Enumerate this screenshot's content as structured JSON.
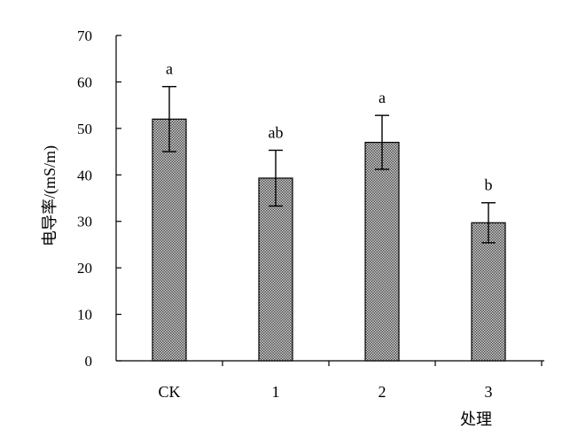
{
  "chart_data": {
    "type": "bar",
    "title": "",
    "ylabel": "电导率/(mS/m)",
    "xlabel": "处理",
    "ylim": [
      0,
      70
    ],
    "yticks": [
      0,
      10,
      20,
      30,
      40,
      50,
      60,
      70
    ],
    "categories": [
      "CK",
      "1",
      "2",
      "3"
    ],
    "values": [
      52,
      39.3,
      47,
      29.7
    ],
    "errors": [
      7,
      6,
      5.8,
      4.3
    ],
    "significance": [
      "a",
      "ab",
      "a",
      "b"
    ],
    "grid": false,
    "legend": "none",
    "bar_pattern_color": "#6e6e6e"
  }
}
